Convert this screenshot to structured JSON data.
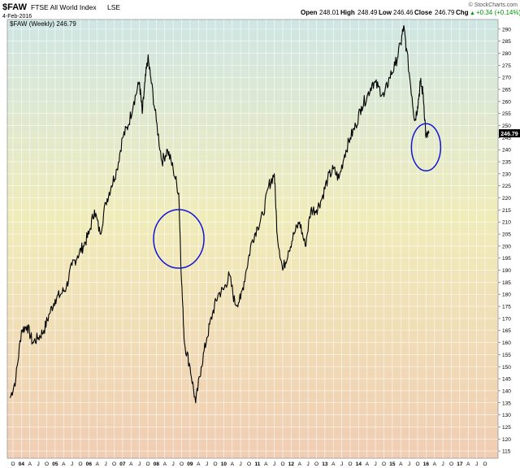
{
  "header": {
    "symbol": "$FAW",
    "name": "FTSE All World Index",
    "exchange": "LSE",
    "date": "4-Feb-2016",
    "open_label": "Open",
    "open": "248.01",
    "high_label": "High",
    "high": "248.49",
    "low_label": "Low",
    "low": "246.46",
    "close_label": "Close",
    "close": "246.79",
    "chg_label": "Chg",
    "chg": "+0.34 (+0.14%)",
    "chg_arrow": "▲",
    "watermark": "© StockCharts.com"
  },
  "legend": {
    "series_label": "$FAW (Weekly) 246.79"
  },
  "colors": {
    "price_line": "#000000",
    "circle": "#1414d2",
    "last_price_box": "#000000",
    "chg_positive": "#009900"
  },
  "chart_data": {
    "type": "line",
    "y_axis_position": "right",
    "ylim": [
      112,
      294
    ],
    "grid": true,
    "last_price_label": "246.79",
    "y_ticks": [
      115,
      120,
      125,
      130,
      135,
      140,
      145,
      150,
      155,
      160,
      165,
      170,
      175,
      180,
      185,
      190,
      195,
      200,
      205,
      210,
      215,
      220,
      225,
      230,
      235,
      240,
      245,
      250,
      255,
      260,
      265,
      270,
      275,
      280,
      285,
      290
    ],
    "x_tick_labels": [
      "O",
      "04",
      "A",
      "J",
      "O",
      "05",
      "A",
      "J",
      "O",
      "06",
      "A",
      "J",
      "O",
      "07",
      "A",
      "J",
      "O",
      "08",
      "A",
      "J",
      "O",
      "09",
      "A",
      "J",
      "O",
      "10",
      "A",
      "J",
      "O",
      "11",
      "A",
      "J",
      "O",
      "12",
      "A",
      "J",
      "O",
      "13",
      "A",
      "J",
      "O",
      "14",
      "A",
      "J",
      "O",
      "15",
      "A",
      "J",
      "O",
      "16",
      "A",
      "J",
      "O",
      "17",
      "A",
      "J",
      "O"
    ],
    "series": [
      {
        "x": [
          "2003-09",
          "2003-11",
          "2004-01",
          "2004-03",
          "2004-05",
          "2004-07",
          "2004-09",
          "2004-11",
          "2005-01",
          "2005-03",
          "2005-05",
          "2005-07",
          "2005-09",
          "2005-11",
          "2006-01",
          "2006-03",
          "2006-05",
          "2006-07",
          "2006-09",
          "2006-11",
          "2007-01",
          "2007-03",
          "2007-05",
          "2007-07",
          "2007-08",
          "2007-09",
          "2007-10",
          "2007-11",
          "2008-01",
          "2008-03",
          "2008-05",
          "2008-07",
          "2008-09",
          "2008-10",
          "2008-11",
          "2009-01",
          "2009-03",
          "2009-05",
          "2009-07",
          "2009-09",
          "2009-11",
          "2010-01",
          "2010-03",
          "2010-05",
          "2010-07",
          "2010-09",
          "2010-11",
          "2011-01",
          "2011-03",
          "2011-05",
          "2011-07",
          "2011-08",
          "2011-10",
          "2011-12",
          "2012-02",
          "2012-04",
          "2012-06",
          "2012-08",
          "2012-10",
          "2012-12",
          "2013-02",
          "2013-04",
          "2013-06",
          "2013-08",
          "2013-10",
          "2013-12",
          "2014-02",
          "2014-04",
          "2014-06",
          "2014-08",
          "2014-10",
          "2014-12",
          "2015-02",
          "2015-04",
          "2015-05",
          "2015-06",
          "2015-08",
          "2015-09",
          "2015-10",
          "2015-11",
          "2015-12",
          "2016-01",
          "2016-02"
        ],
        "y": [
          137,
          145,
          165,
          167,
          160,
          162,
          165,
          172,
          178,
          180,
          183,
          192,
          196,
          200,
          205,
          215,
          205,
          218,
          225,
          232,
          245,
          250,
          260,
          268,
          255,
          268,
          278,
          270,
          252,
          235,
          240,
          232,
          222,
          185,
          160,
          150,
          135,
          150,
          162,
          172,
          180,
          182,
          188,
          176,
          178,
          190,
          202,
          208,
          213,
          225,
          230,
          205,
          190,
          198,
          205,
          210,
          200,
          215,
          215,
          220,
          228,
          232,
          228,
          238,
          245,
          250,
          258,
          262,
          268,
          266,
          262,
          270,
          275,
          284,
          291,
          282,
          262,
          252,
          258,
          268,
          263,
          245,
          246.79
        ]
      }
    ],
    "annotations": [
      {
        "shape": "ellipse",
        "center_date": "2008-09",
        "center_value": 203,
        "note": ""
      },
      {
        "shape": "ellipse",
        "center_date": "2016-01",
        "center_value": 241,
        "note": ""
      }
    ]
  }
}
